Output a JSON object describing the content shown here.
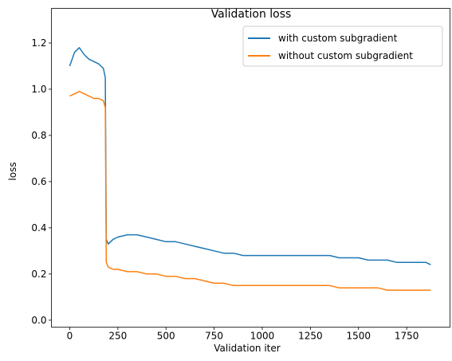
{
  "chart_data": {
    "type": "line",
    "title": "Validation loss",
    "xlabel": "Validation iter",
    "ylabel": "loss",
    "xlim": [
      -95,
      1975
    ],
    "ylim": [
      -0.03,
      1.35
    ],
    "xticks": [
      0,
      250,
      500,
      750,
      1000,
      1250,
      1500,
      1750
    ],
    "xtick_labels": [
      "0",
      "250",
      "500",
      "750",
      "1000",
      "1250",
      "1500",
      "1750"
    ],
    "yticks": [
      0.0,
      0.2,
      0.4,
      0.6,
      0.8,
      1.0,
      1.2
    ],
    "ytick_labels": [
      "0.0",
      "0.2",
      "0.4",
      "0.6",
      "0.8",
      "1.0",
      "1.2"
    ],
    "grid": false,
    "legend_position": "upper right",
    "series": [
      {
        "name": "with custom subgradient",
        "color": "#1f77b4",
        "x": [
          0,
          25,
          50,
          75,
          100,
          125,
          150,
          175,
          185,
          190,
          200,
          225,
          250,
          300,
          350,
          400,
          450,
          500,
          550,
          600,
          650,
          700,
          750,
          800,
          850,
          900,
          950,
          1000,
          1050,
          1100,
          1150,
          1200,
          1250,
          1300,
          1350,
          1400,
          1450,
          1500,
          1550,
          1600,
          1650,
          1700,
          1750,
          1800,
          1850,
          1875
        ],
        "y": [
          1.1,
          1.16,
          1.18,
          1.15,
          1.13,
          1.12,
          1.11,
          1.09,
          1.05,
          0.35,
          0.33,
          0.35,
          0.36,
          0.37,
          0.37,
          0.36,
          0.35,
          0.34,
          0.34,
          0.33,
          0.32,
          0.31,
          0.3,
          0.29,
          0.29,
          0.28,
          0.28,
          0.28,
          0.28,
          0.28,
          0.28,
          0.28,
          0.28,
          0.28,
          0.28,
          0.27,
          0.27,
          0.27,
          0.26,
          0.26,
          0.26,
          0.25,
          0.25,
          0.25,
          0.25,
          0.24
        ]
      },
      {
        "name": "without custom subgradient",
        "color": "#ff7f0e",
        "x": [
          0,
          25,
          50,
          75,
          100,
          125,
          150,
          175,
          185,
          190,
          200,
          225,
          250,
          300,
          350,
          400,
          450,
          500,
          550,
          600,
          650,
          700,
          750,
          800,
          850,
          900,
          950,
          1000,
          1050,
          1100,
          1150,
          1200,
          1250,
          1300,
          1350,
          1400,
          1450,
          1500,
          1550,
          1600,
          1650,
          1700,
          1750,
          1800,
          1850,
          1875
        ],
        "y": [
          0.97,
          0.98,
          0.99,
          0.98,
          0.97,
          0.96,
          0.96,
          0.95,
          0.92,
          0.25,
          0.23,
          0.22,
          0.22,
          0.21,
          0.21,
          0.2,
          0.2,
          0.19,
          0.19,
          0.18,
          0.18,
          0.17,
          0.16,
          0.16,
          0.15,
          0.15,
          0.15,
          0.15,
          0.15,
          0.15,
          0.15,
          0.15,
          0.15,
          0.15,
          0.15,
          0.14,
          0.14,
          0.14,
          0.14,
          0.14,
          0.13,
          0.13,
          0.13,
          0.13,
          0.13,
          0.13
        ]
      }
    ]
  }
}
